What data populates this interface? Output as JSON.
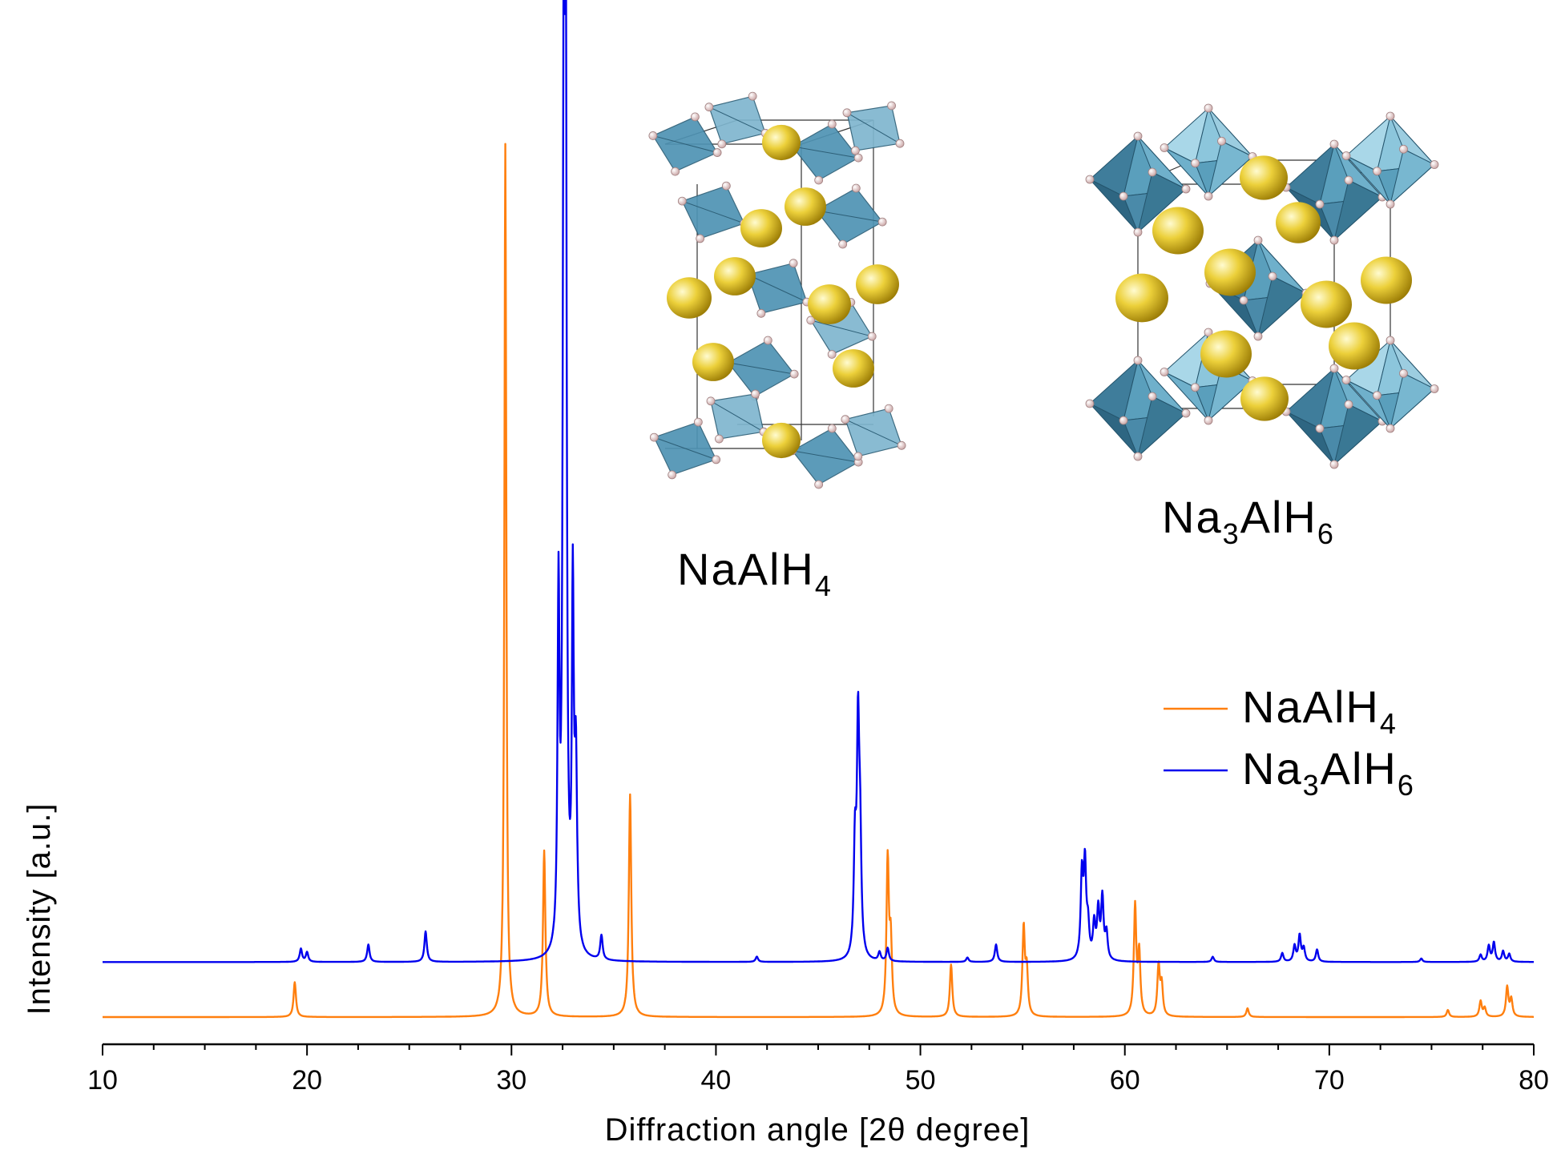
{
  "chart_data": {
    "type": "line",
    "xlabel": "Diffraction angle [2θ degree]",
    "ylabel": "Intensity [a.u.]",
    "xlim": [
      10,
      80
    ],
    "x_ticks": [
      10,
      20,
      30,
      40,
      50,
      60,
      70,
      80
    ],
    "y_ticks_labeled": false,
    "legend_position": "right",
    "series": [
      {
        "name": "NaAlH4",
        "name_base": "NaAlH",
        "name_sub": "4",
        "color": "#ff7f0e",
        "baseline": 0,
        "peaks": [
          {
            "x": 19.4,
            "h": 0.04
          },
          {
            "x": 29.7,
            "h": 1.0
          },
          {
            "x": 31.6,
            "h": 0.19
          },
          {
            "x": 35.8,
            "h": 0.255
          },
          {
            "x": 48.4,
            "h": 0.177
          },
          {
            "x": 48.55,
            "h": 0.08
          },
          {
            "x": 51.5,
            "h": 0.06
          },
          {
            "x": 55.05,
            "h": 0.1
          },
          {
            "x": 55.2,
            "h": 0.05
          },
          {
            "x": 60.5,
            "h": 0.125
          },
          {
            "x": 60.7,
            "h": 0.07
          },
          {
            "x": 61.65,
            "h": 0.057
          },
          {
            "x": 61.8,
            "h": 0.035
          },
          {
            "x": 66.0,
            "h": 0.01
          },
          {
            "x": 75.8,
            "h": 0.008
          },
          {
            "x": 77.4,
            "h": 0.018
          },
          {
            "x": 77.6,
            "h": 0.01
          },
          {
            "x": 78.7,
            "h": 0.034
          },
          {
            "x": 78.9,
            "h": 0.02
          }
        ]
      },
      {
        "name": "Na3AlH6",
        "name_base_1": "Na",
        "name_sub_1": "3",
        "name_base_2": "AlH",
        "name_sub_2": "6",
        "color": "#0000ee",
        "baseline": 0.063,
        "peaks": [
          {
            "x": 19.7,
            "h": 0.015
          },
          {
            "x": 20.0,
            "h": 0.011
          },
          {
            "x": 23.0,
            "h": 0.02
          },
          {
            "x": 25.8,
            "h": 0.035
          },
          {
            "x": 32.3,
            "h": 0.4
          },
          {
            "x": 32.55,
            "h": 0.88
          },
          {
            "x": 32.65,
            "h": 1.06
          },
          {
            "x": 33.0,
            "h": 0.4
          },
          {
            "x": 33.15,
            "h": 0.21
          },
          {
            "x": 34.4,
            "h": 0.028
          },
          {
            "x": 42.0,
            "h": 0.006
          },
          {
            "x": 46.8,
            "h": 0.12
          },
          {
            "x": 46.95,
            "h": 0.25
          },
          {
            "x": 47.05,
            "h": 0.12
          },
          {
            "x": 48.0,
            "h": 0.01
          },
          {
            "x": 48.4,
            "h": 0.015
          },
          {
            "x": 52.3,
            "h": 0.005
          },
          {
            "x": 53.7,
            "h": 0.02
          },
          {
            "x": 57.9,
            "h": 0.095
          },
          {
            "x": 58.05,
            "h": 0.105
          },
          {
            "x": 58.2,
            "h": 0.035
          },
          {
            "x": 58.5,
            "h": 0.04
          },
          {
            "x": 58.7,
            "h": 0.055
          },
          {
            "x": 58.9,
            "h": 0.07
          },
          {
            "x": 59.1,
            "h": 0.03
          },
          {
            "x": 64.3,
            "h": 0.006
          },
          {
            "x": 67.7,
            "h": 0.01
          },
          {
            "x": 68.3,
            "h": 0.018
          },
          {
            "x": 68.55,
            "h": 0.03
          },
          {
            "x": 68.75,
            "h": 0.015
          },
          {
            "x": 69.4,
            "h": 0.014
          },
          {
            "x": 74.5,
            "h": 0.004
          },
          {
            "x": 77.4,
            "h": 0.008
          },
          {
            "x": 77.8,
            "h": 0.018
          },
          {
            "x": 78.05,
            "h": 0.022
          },
          {
            "x": 78.5,
            "h": 0.012
          },
          {
            "x": 78.8,
            "h": 0.009
          }
        ]
      }
    ]
  },
  "insets": [
    {
      "name": "NaAlH4",
      "base": "NaAlH",
      "sub": "4"
    },
    {
      "name": "Na3AlH6",
      "base_1": "Na",
      "sub_1": "3",
      "base_2": "AlH",
      "sub_2": "6"
    }
  ],
  "colors": {
    "sodium_atom": "#e6c21e",
    "aluminium_polyhedron": "#4f93b4",
    "hydrogen_atom": "#f2d6d6"
  }
}
